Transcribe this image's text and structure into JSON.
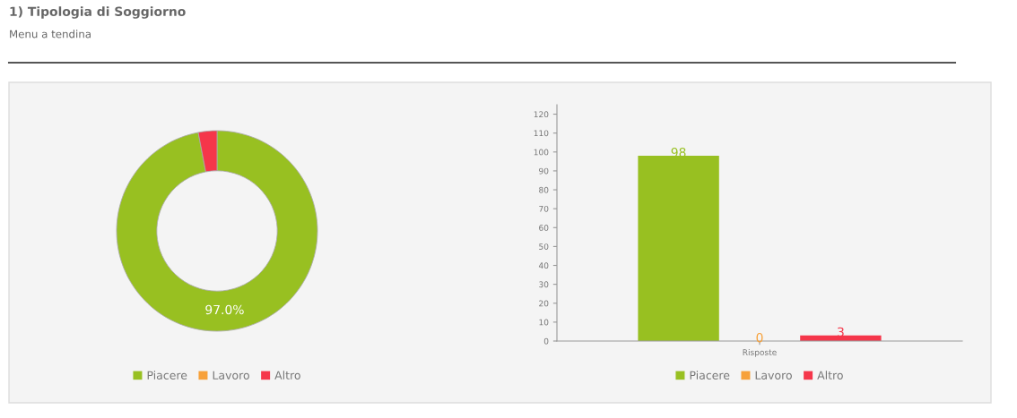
{
  "chart_data": [
    {
      "type": "donut",
      "title": "1) Tipologia di Soggiorno",
      "subtitle": "Menu a tendina",
      "categories": [
        "Piacere",
        "Lavoro",
        "Altro"
      ],
      "values": [
        97.0,
        0,
        3.0
      ],
      "colors": [
        "#98c021",
        "#f7a13a",
        "#f5364a"
      ],
      "value_labels": [
        "97.0%",
        null,
        null
      ],
      "legend": "bottom"
    },
    {
      "type": "bar",
      "categories": [
        "Risposte"
      ],
      "series": [
        {
          "name": "Piacere",
          "color": "#98c021",
          "values": [
            98
          ]
        },
        {
          "name": "Lavoro",
          "color": "#f7a13a",
          "values": [
            0
          ]
        },
        {
          "name": "Altro",
          "color": "#f5364a",
          "values": [
            3
          ]
        }
      ],
      "ylim": [
        0,
        125
      ],
      "yticks": [
        0,
        10,
        20,
        30,
        40,
        50,
        60,
        70,
        80,
        90,
        100,
        110,
        120
      ],
      "data_labels": true,
      "grid": false,
      "legend": "bottom"
    }
  ]
}
